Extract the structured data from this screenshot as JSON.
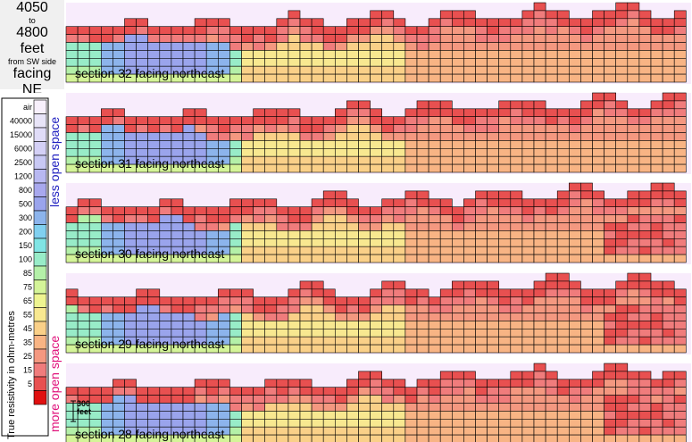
{
  "header": {
    "from_depth": "4050",
    "to_word": "to",
    "to_depth": "4800",
    "unit": "feet",
    "reference": "from SW side",
    "facing_word": "facing",
    "direction": "NE"
  },
  "legend": {
    "axis_label": "True resistivity in ohm-metres",
    "less_label": "less open space",
    "more_label": "more open space",
    "less_color": "#2020c0",
    "more_color": "#e0107a",
    "levels": [
      {
        "label": "air",
        "color": "#f8f0fc"
      },
      {
        "label": "40000",
        "color": "#e8e4f8"
      },
      {
        "label": "15000",
        "color": "#e0dcf8"
      },
      {
        "label": "6000",
        "color": "#d4d0f6"
      },
      {
        "label": "2500",
        "color": "#c8c8f4"
      },
      {
        "label": "1200",
        "color": "#b8b8f2"
      },
      {
        "label": "800",
        "color": "#a8a8ee"
      },
      {
        "label": "500",
        "color": "#9aa4ec"
      },
      {
        "label": "300",
        "color": "#8cb4ec"
      },
      {
        "label": "200",
        "color": "#80d0f0"
      },
      {
        "label": "150",
        "color": "#80e4e4"
      },
      {
        "label": "100",
        "color": "#98ecc8"
      },
      {
        "label": "85",
        "color": "#b4f0a8"
      },
      {
        "label": "75",
        "color": "#d4f498"
      },
      {
        "label": "65",
        "color": "#eef490"
      },
      {
        "label": "55",
        "color": "#f8e890"
      },
      {
        "label": "45",
        "color": "#fad088"
      },
      {
        "label": "35",
        "color": "#f8b484"
      },
      {
        "label": "25",
        "color": "#f49880"
      },
      {
        "label": "15",
        "color": "#f07c7c"
      },
      {
        "label": "5",
        "color": "#e85050"
      },
      {
        "label": "",
        "color": "#e01010"
      }
    ]
  },
  "scale_bar_label": "300 feet",
  "sections": [
    {
      "label": "section 32 facing northeast"
    },
    {
      "label": "section 31 facing northeast"
    },
    {
      "label": "section 30 facing northeast"
    },
    {
      "label": "section 29 facing northeast"
    },
    {
      "label": "section 28 facing northeast"
    }
  ],
  "colors": {
    "panel_background": "#f8ecfc",
    "cell_border": "#000000"
  }
}
